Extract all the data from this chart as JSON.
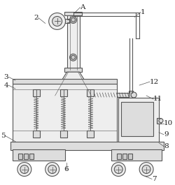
{
  "bg_color": "#ffffff",
  "line_color": "#555555",
  "label_color": "#222222",
  "fill_light": "#eeeeee",
  "fill_mid": "#dddddd",
  "fill_dark": "#cccccc"
}
